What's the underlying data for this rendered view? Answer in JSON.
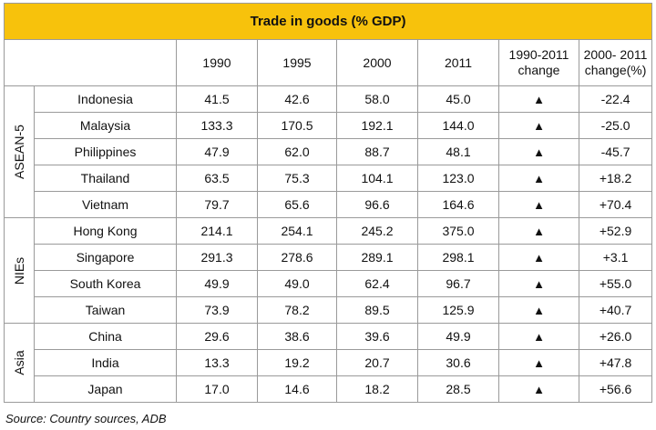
{
  "chart_data": {
    "type": "table",
    "title": "Trade in goods (% GDP)",
    "columns": [
      "1990",
      "1995",
      "2000",
      "2011",
      "1990-2011 change",
      "2000- 2011 change(%)"
    ],
    "groups": [
      {
        "name": "ASEAN-5",
        "rows": [
          {
            "country": "Indonesia",
            "values": [
              "41.5",
              "42.6",
              "58.0",
              "45.0"
            ],
            "change_1990_2011": "▲",
            "change_2000_2011": "-22.4"
          },
          {
            "country": "Malaysia",
            "values": [
              "133.3",
              "170.5",
              "192.1",
              "144.0"
            ],
            "change_1990_2011": "▲",
            "change_2000_2011": "-25.0"
          },
          {
            "country": "Philippines",
            "values": [
              "47.9",
              "62.0",
              "88.7",
              "48.1"
            ],
            "change_1990_2011": "▲",
            "change_2000_2011": "-45.7"
          },
          {
            "country": "Thailand",
            "values": [
              "63.5",
              "75.3",
              "104.1",
              "123.0"
            ],
            "change_1990_2011": "▲",
            "change_2000_2011": "+18.2"
          },
          {
            "country": "Vietnam",
            "values": [
              "79.7",
              "65.6",
              "96.6",
              "164.6"
            ],
            "change_1990_2011": "▲",
            "change_2000_2011": "+70.4"
          }
        ]
      },
      {
        "name": "NIEs",
        "rows": [
          {
            "country": "Hong Kong",
            "values": [
              "214.1",
              "254.1",
              "245.2",
              "375.0"
            ],
            "change_1990_2011": "▲",
            "change_2000_2011": "+52.9"
          },
          {
            "country": "Singapore",
            "values": [
              "291.3",
              "278.6",
              "289.1",
              "298.1"
            ],
            "change_1990_2011": "▲",
            "change_2000_2011": "+3.1"
          },
          {
            "country": "South Korea",
            "values": [
              "49.9",
              "49.0",
              "62.4",
              "96.7"
            ],
            "change_1990_2011": "▲",
            "change_2000_2011": "+55.0"
          },
          {
            "country": "Taiwan",
            "values": [
              "73.9",
              "78.2",
              "89.5",
              "125.9"
            ],
            "change_1990_2011": "▲",
            "change_2000_2011": "+40.7"
          }
        ]
      },
      {
        "name": "Asia",
        "rows": [
          {
            "country": "China",
            "values": [
              "29.6",
              "38.6",
              "39.6",
              "49.9"
            ],
            "change_1990_2011": "▲",
            "change_2000_2011": "+26.0"
          },
          {
            "country": "India",
            "values": [
              "13.3",
              "19.2",
              "20.7",
              "30.6"
            ],
            "change_1990_2011": "▲",
            "change_2000_2011": "+47.8"
          },
          {
            "country": "Japan",
            "values": [
              "17.0",
              "14.6",
              "18.2",
              "28.5"
            ],
            "change_1990_2011": "▲",
            "change_2000_2011": "+56.6"
          }
        ]
      }
    ],
    "source": "Source: Country sources, ADB"
  },
  "colors": {
    "title_bar": "#f7c20c",
    "border": "#9a9a9a"
  }
}
